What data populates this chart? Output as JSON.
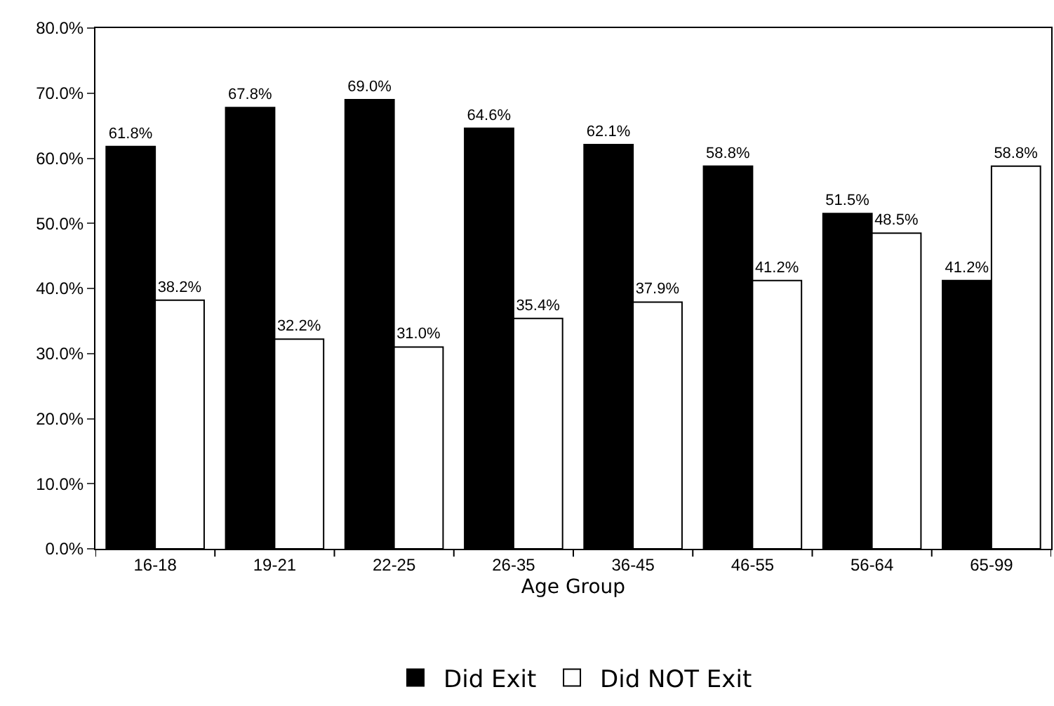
{
  "chart_data": {
    "type": "bar",
    "xlabel": "Age Group",
    "categories": [
      "16-18",
      "19-21",
      "22-25",
      "26-35",
      "36-45",
      "46-55",
      "56-64",
      "65-99"
    ],
    "series": [
      {
        "name": "Did Exit",
        "color": "#000000",
        "values": [
          61.8,
          67.8,
          69.0,
          64.6,
          62.1,
          58.8,
          51.5,
          41.2
        ],
        "value_labels": [
          "61.8%",
          "67.8%",
          "69.0%",
          "64.6%",
          "62.1%",
          "58.8%",
          "51.5%",
          "41.2%"
        ]
      },
      {
        "name": "Did NOT Exit",
        "color": "#ffffff",
        "values": [
          38.2,
          32.2,
          31.0,
          35.4,
          37.9,
          41.2,
          48.5,
          58.8
        ],
        "value_labels": [
          "38.2%",
          "32.2%",
          "31.0%",
          "35.4%",
          "37.9%",
          "41.2%",
          "48.5%",
          "58.8%"
        ]
      }
    ],
    "ylim": [
      0,
      80
    ],
    "yticks": [
      {
        "value": 0,
        "label": "0.0%"
      },
      {
        "value": 10,
        "label": "10.0%"
      },
      {
        "value": 20,
        "label": "20.0%"
      },
      {
        "value": 30,
        "label": "30.0%"
      },
      {
        "value": 40,
        "label": "40.0%"
      },
      {
        "value": 50,
        "label": "50.0%"
      },
      {
        "value": 60,
        "label": "60.0%"
      },
      {
        "value": 70,
        "label": "70.0%"
      },
      {
        "value": 80,
        "label": "80.0%"
      }
    ],
    "legend": "bottom"
  }
}
